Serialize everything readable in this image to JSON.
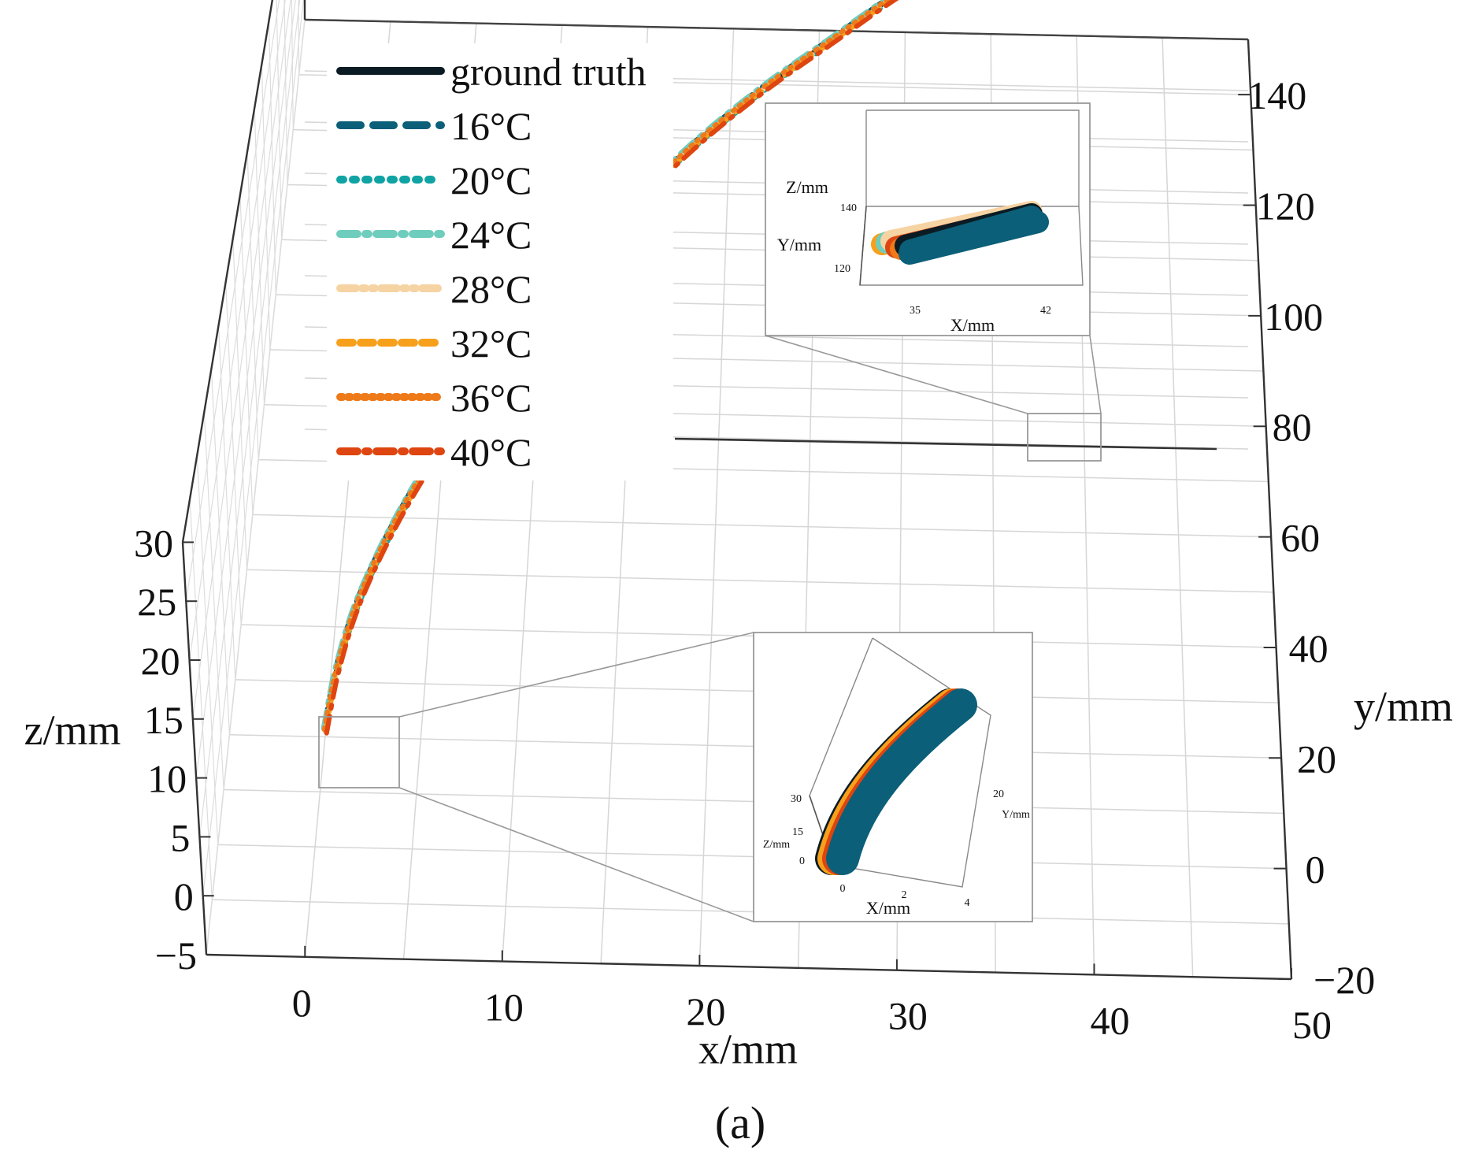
{
  "chart_data": {
    "type": "line",
    "projection": "3d",
    "panel_label": "(a)",
    "xlabel": "x/mm",
    "ylabel": "y/mm",
    "zlabel": "z/mm",
    "xlim": [
      -5,
      50
    ],
    "ylim": [
      -20,
      150
    ],
    "zlim": [
      -5,
      30
    ],
    "grid": true,
    "legend_position": "top-left",
    "x_ticks": [
      "0",
      "10",
      "20",
      "30",
      "40",
      "50"
    ],
    "y_ticks": [
      "−20",
      "0",
      "20",
      "40",
      "60",
      "80",
      "100",
      "120",
      "140"
    ],
    "z_ticks": [
      "−5",
      "0",
      "5",
      "10",
      "15",
      "20",
      "25",
      "30"
    ],
    "series": [
      {
        "name": "ground truth",
        "color": "#0b1b24",
        "dash": "solid"
      },
      {
        "name": "16°C",
        "color": "#0b5f78",
        "dash": "long-dash"
      },
      {
        "name": "20°C",
        "color": "#10a3a3",
        "dash": "dot"
      },
      {
        "name": "24°C",
        "color": "#6ecdbd",
        "dash": "dash-dot"
      },
      {
        "name": "28°C",
        "color": "#f6d3a2",
        "dash": "dash-dot-dot"
      },
      {
        "name": "32°C",
        "color": "#f7a01c",
        "dash": "dash"
      },
      {
        "name": "36°C",
        "color": "#ee7a1a",
        "dash": "fine-dot"
      },
      {
        "name": "40°C",
        "color": "#de4510",
        "dash": "dash-dot"
      }
    ],
    "trajectory": {
      "x": [
        0.5,
        1,
        2,
        4,
        7,
        10,
        14,
        18,
        22,
        26,
        30,
        34,
        38,
        40
      ],
      "y": [
        0,
        6,
        14,
        26,
        42,
        56,
        72,
        86,
        98,
        108,
        118,
        126,
        134,
        138
      ],
      "z": [
        5.5,
        8.5,
        11.5,
        14.5,
        17,
        19,
        21,
        22.5,
        23.5,
        24.5,
        25.3,
        26,
        26.6,
        27
      ]
    },
    "insets": [
      {
        "name": "end-zoom",
        "xlabel": "X/mm",
        "ylabel": "Y/mm",
        "zlabel": "Z/mm",
        "x_ticks": [
          "35",
          "42"
        ],
        "y_ticks": [
          "120"
        ],
        "z_ticks": [
          "140"
        ]
      },
      {
        "name": "start-zoom",
        "xlabel": "X/mm",
        "ylabel": "Y/mm",
        "zlabel": "Z/mm",
        "x_ticks": [
          "0",
          "2",
          "4"
        ],
        "y_ticks": [
          "20"
        ],
        "z_ticks": [
          "0",
          "15",
          "30"
        ]
      }
    ]
  }
}
